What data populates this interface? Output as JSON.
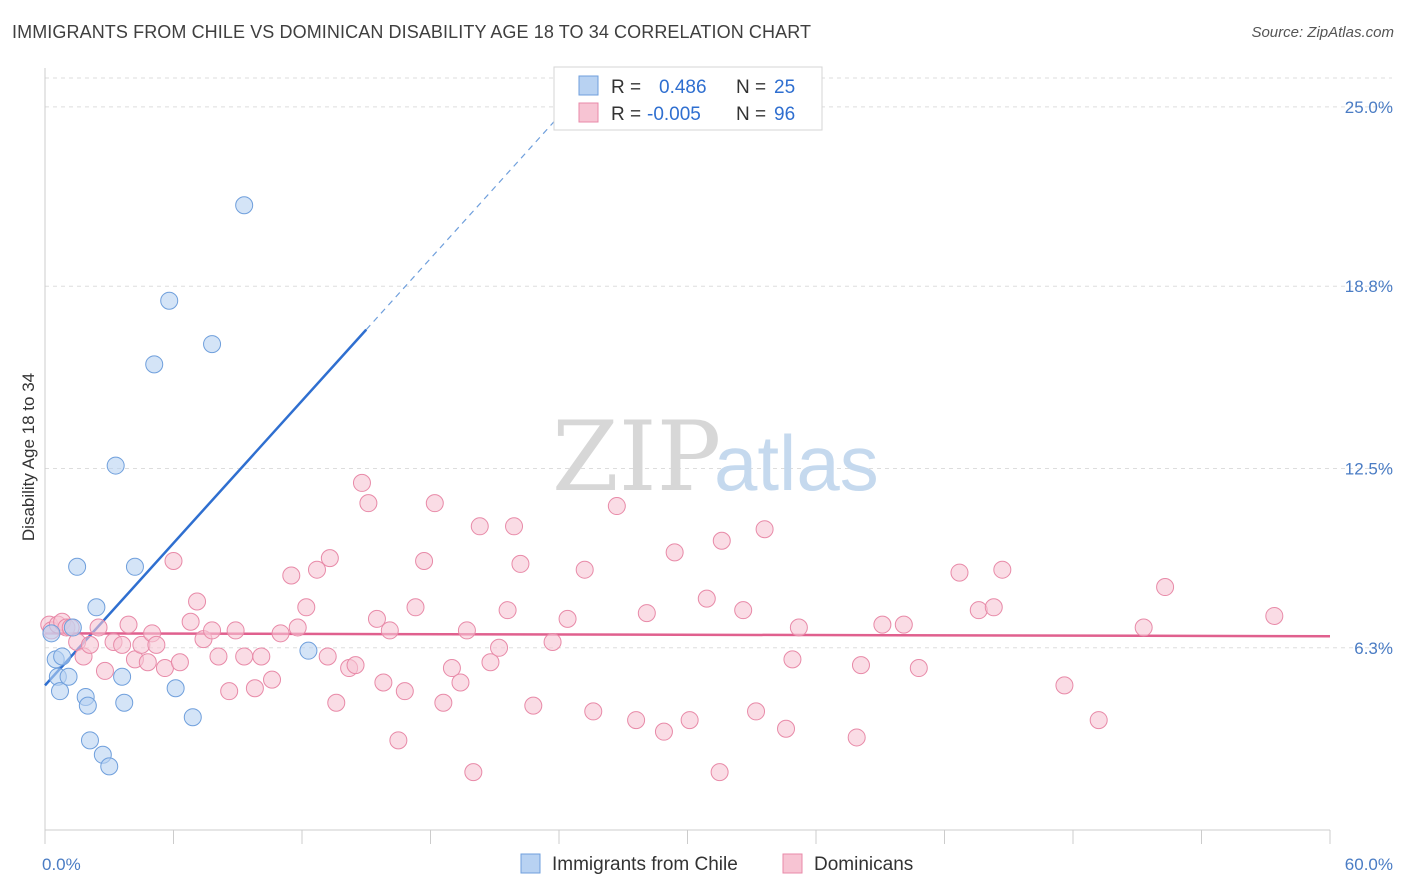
{
  "title": "IMMIGRANTS FROM CHILE VS DOMINICAN DISABILITY AGE 18 TO 34 CORRELATION CHART",
  "source": "Source: ZipAtlas.com",
  "watermark": {
    "zip": "ZIP",
    "atlas": "atlas"
  },
  "colors": {
    "blue_fill": "#b8d2f2",
    "blue_stroke": "#6f9fdc",
    "blue_line": "#2f6fd0",
    "pink_fill": "#f7c4d3",
    "pink_stroke": "#e88aa8",
    "pink_line": "#e0608e",
    "grid": "#dddddd",
    "tick_label": "#4a7cc4"
  },
  "legend": {
    "rows": [
      {
        "r_label": "R =",
        "r_value": "0.486",
        "n_label": "N =",
        "n_value": "25",
        "color": "blue"
      },
      {
        "r_label": "R =",
        "r_value": "-0.005",
        "n_label": "N =",
        "n_value": "96",
        "color": "pink"
      }
    ]
  },
  "chart_data": {
    "type": "scatter",
    "title": "IMMIGRANTS FROM CHILE VS DOMINICAN DISABILITY AGE 18 TO 34 CORRELATION CHART",
    "xlabel": "",
    "ylabel": "Disability Age 18 to 34",
    "xlim": [
      0,
      60
    ],
    "ylim": [
      0,
      26
    ],
    "x_tick_labels": [
      "0.0%",
      "60.0%"
    ],
    "y_ticks": [
      6.3,
      12.5,
      18.8,
      25.0
    ],
    "y_tick_labels": [
      "6.3%",
      "12.5%",
      "18.8%",
      "25.0%"
    ],
    "grid": true,
    "legend_position": "bottom",
    "series": [
      {
        "name": "Immigrants from Chile",
        "color": "blue",
        "trend": {
          "x0": 0,
          "y0": 5.0,
          "x1": 15,
          "y1": 17.3,
          "dashed_to_x": 24.5
        },
        "points": [
          [
            0.3,
            6.8
          ],
          [
            0.5,
            5.9
          ],
          [
            0.6,
            5.3
          ],
          [
            0.7,
            4.8
          ],
          [
            0.8,
            6.0
          ],
          [
            1.1,
            5.3
          ],
          [
            1.3,
            7.0
          ],
          [
            1.5,
            9.1
          ],
          [
            1.9,
            4.6
          ],
          [
            2.0,
            4.3
          ],
          [
            2.1,
            3.1
          ],
          [
            2.4,
            7.7
          ],
          [
            2.7,
            2.6
          ],
          [
            3.0,
            2.2
          ],
          [
            3.3,
            12.6
          ],
          [
            3.7,
            4.4
          ],
          [
            4.2,
            9.1
          ],
          [
            5.1,
            16.1
          ],
          [
            5.8,
            18.3
          ],
          [
            6.1,
            4.9
          ],
          [
            6.9,
            3.9
          ],
          [
            7.8,
            16.8
          ],
          [
            9.3,
            21.6
          ],
          [
            12.3,
            6.2
          ],
          [
            3.6,
            5.3
          ]
        ]
      },
      {
        "name": "Dominicans",
        "color": "pink",
        "trend": {
          "x0": 0,
          "y0": 6.8,
          "x1": 60,
          "y1": 6.7
        },
        "points": [
          [
            0.2,
            7.1
          ],
          [
            0.3,
            6.9
          ],
          [
            0.6,
            7.1
          ],
          [
            0.8,
            7.2
          ],
          [
            1.0,
            7.0
          ],
          [
            1.2,
            7.0
          ],
          [
            1.5,
            6.5
          ],
          [
            1.8,
            6.0
          ],
          [
            2.1,
            6.4
          ],
          [
            2.5,
            7.0
          ],
          [
            2.8,
            5.5
          ],
          [
            3.2,
            6.5
          ],
          [
            3.6,
            6.4
          ],
          [
            3.9,
            7.1
          ],
          [
            4.2,
            5.9
          ],
          [
            4.5,
            6.4
          ],
          [
            4.8,
            5.8
          ],
          [
            5.0,
            6.8
          ],
          [
            5.2,
            6.4
          ],
          [
            5.6,
            5.6
          ],
          [
            6.0,
            9.3
          ],
          [
            6.3,
            5.8
          ],
          [
            6.8,
            7.2
          ],
          [
            7.1,
            7.9
          ],
          [
            7.4,
            6.6
          ],
          [
            7.8,
            6.9
          ],
          [
            8.1,
            6.0
          ],
          [
            8.6,
            4.8
          ],
          [
            8.9,
            6.9
          ],
          [
            9.3,
            6.0
          ],
          [
            9.8,
            4.9
          ],
          [
            10.1,
            6.0
          ],
          [
            10.6,
            5.2
          ],
          [
            11.0,
            6.8
          ],
          [
            11.5,
            8.8
          ],
          [
            11.8,
            7.0
          ],
          [
            12.2,
            7.7
          ],
          [
            12.7,
            9.0
          ],
          [
            13.2,
            6.0
          ],
          [
            13.3,
            9.4
          ],
          [
            13.6,
            4.4
          ],
          [
            14.2,
            5.6
          ],
          [
            14.5,
            5.7
          ],
          [
            14.8,
            12.0
          ],
          [
            15.1,
            11.3
          ],
          [
            15.5,
            7.3
          ],
          [
            15.8,
            5.1
          ],
          [
            16.1,
            6.9
          ],
          [
            16.5,
            3.1
          ],
          [
            16.8,
            4.8
          ],
          [
            17.3,
            7.7
          ],
          [
            17.7,
            9.3
          ],
          [
            18.2,
            11.3
          ],
          [
            18.6,
            4.4
          ],
          [
            19.0,
            5.6
          ],
          [
            19.4,
            5.1
          ],
          [
            19.7,
            6.9
          ],
          [
            20.0,
            2.0
          ],
          [
            20.3,
            10.5
          ],
          [
            20.8,
            5.8
          ],
          [
            21.2,
            6.3
          ],
          [
            21.6,
            7.6
          ],
          [
            21.9,
            10.5
          ],
          [
            22.2,
            9.2
          ],
          [
            22.8,
            4.3
          ],
          [
            23.7,
            6.5
          ],
          [
            24.4,
            7.3
          ],
          [
            25.2,
            9.0
          ],
          [
            25.6,
            4.1
          ],
          [
            26.7,
            11.2
          ],
          [
            27.6,
            3.8
          ],
          [
            28.1,
            7.5
          ],
          [
            28.9,
            3.4
          ],
          [
            29.4,
            9.6
          ],
          [
            30.1,
            3.8
          ],
          [
            30.9,
            8.0
          ],
          [
            31.6,
            10.0
          ],
          [
            31.5,
            2.0
          ],
          [
            32.6,
            7.6
          ],
          [
            33.2,
            4.1
          ],
          [
            33.6,
            10.4
          ],
          [
            34.6,
            3.5
          ],
          [
            34.9,
            5.9
          ],
          [
            35.2,
            7.0
          ],
          [
            37.9,
            3.2
          ],
          [
            38.1,
            5.7
          ],
          [
            39.1,
            7.1
          ],
          [
            40.1,
            7.1
          ],
          [
            40.8,
            5.6
          ],
          [
            42.7,
            8.9
          ],
          [
            43.6,
            7.6
          ],
          [
            44.3,
            7.7
          ],
          [
            44.7,
            9.0
          ],
          [
            47.6,
            5.0
          ],
          [
            49.2,
            3.8
          ],
          [
            51.3,
            7.0
          ],
          [
            52.3,
            8.4
          ],
          [
            57.4,
            7.4
          ]
        ]
      }
    ]
  },
  "bottom_legend": [
    {
      "label": "Immigrants from Chile",
      "color": "blue"
    },
    {
      "label": "Dominicans",
      "color": "pink"
    }
  ]
}
